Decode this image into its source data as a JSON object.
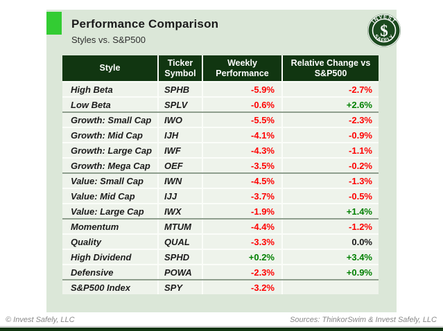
{
  "header": {
    "title": "Performance Comparison",
    "subtitle": "Styles vs. S&P500"
  },
  "logo": {
    "arc_top": "INVEST",
    "arc_bottom": "SAFELY",
    "symbol": "$"
  },
  "chart_data": {
    "type": "table",
    "title": "Performance Comparison",
    "subtitle": "Styles vs. S&P500",
    "columns": [
      "Style",
      "Ticker Symbol",
      "Weekly Performance",
      "Relative Change vs S&P500"
    ],
    "groups": [
      {
        "rows": [
          {
            "style": "High Beta",
            "ticker": "SPHB",
            "weekly": "-5.9%",
            "relative": "-2.7%"
          },
          {
            "style": "Low Beta",
            "ticker": "SPLV",
            "weekly": "-0.6%",
            "relative": "+2.6%"
          }
        ]
      },
      {
        "rows": [
          {
            "style": "Growth: Small Cap",
            "ticker": "IWO",
            "weekly": "-5.5%",
            "relative": "-2.3%"
          },
          {
            "style": "Growth: Mid Cap",
            "ticker": "IJH",
            "weekly": "-4.1%",
            "relative": "-0.9%"
          },
          {
            "style": "Growth: Large Cap",
            "ticker": "IWF",
            "weekly": "-4.3%",
            "relative": "-1.1%"
          },
          {
            "style": "Growth: Mega Cap",
            "ticker": "OEF",
            "weekly": "-3.5%",
            "relative": "-0.2%"
          }
        ]
      },
      {
        "rows": [
          {
            "style": "Value: Small Cap",
            "ticker": "IWN",
            "weekly": "-4.5%",
            "relative": "-1.3%"
          },
          {
            "style": "Value: Mid Cap",
            "ticker": "IJJ",
            "weekly": "-3.7%",
            "relative": "-0.5%"
          },
          {
            "style": "Value: Large Cap",
            "ticker": "IWX",
            "weekly": "-1.9%",
            "relative": "+1.4%"
          }
        ]
      },
      {
        "rows": [
          {
            "style": "Momentum",
            "ticker": "MTUM",
            "weekly": "-4.4%",
            "relative": "-1.2%"
          },
          {
            "style": "Quality",
            "ticker": "QUAL",
            "weekly": "-3.3%",
            "relative": "0.0%"
          },
          {
            "style": "High Dividend",
            "ticker": "SPHD",
            "weekly": "+0.2%",
            "relative": "+3.4%"
          },
          {
            "style": "Defensive",
            "ticker": "POWA",
            "weekly": "-2.3%",
            "relative": "+0.9%"
          }
        ]
      },
      {
        "rows": [
          {
            "style": "S&P500 Index",
            "ticker": "SPY",
            "weekly": "-3.2%",
            "relative": ""
          }
        ]
      }
    ]
  },
  "footer": {
    "left": "© Invest Safely, LLC",
    "right": "Sources: ThinkorSwim & Invest Safely, LLC"
  },
  "colors": {
    "accent_green": "#33cc33",
    "dark_green": "#113611",
    "card_bg": "#dbe7d8",
    "row_bg": "#eef3eb",
    "negative": "#fe0000",
    "positive": "#008000"
  }
}
